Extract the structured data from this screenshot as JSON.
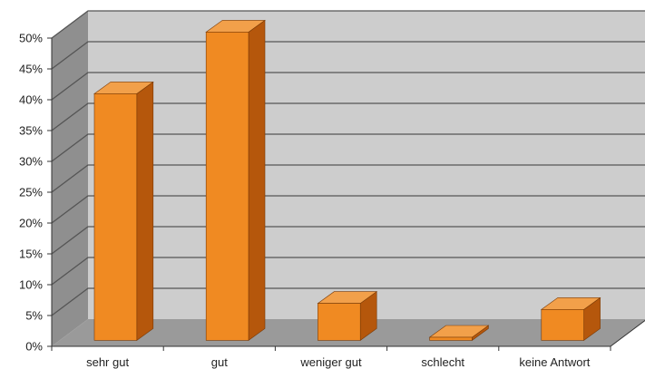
{
  "chart_data": {
    "type": "bar",
    "style": "3d",
    "title": "",
    "xlabel": "",
    "ylabel": "",
    "categories": [
      "sehr gut",
      "gut",
      "weniger gut",
      "schlecht",
      "keine Antwort"
    ],
    "values": [
      40,
      50,
      6,
      0.5,
      5
    ],
    "ylim": [
      0,
      50
    ],
    "yticks": [
      0,
      5,
      10,
      15,
      20,
      25,
      30,
      35,
      40,
      45,
      50
    ],
    "ytick_labels": [
      "0%",
      "5%",
      "10%",
      "15%",
      "20%",
      "25%",
      "30%",
      "35%",
      "40%",
      "45%",
      "50%"
    ],
    "grid": true,
    "legend": "none",
    "colors": {
      "bar_front": "#f08a22",
      "bar_side": "#b5570c",
      "bar_top": "#f2a04a",
      "wall_back": "#cdcdcd",
      "wall_side": "#8f8f8f",
      "floor": "#9a9a9a",
      "gridline": "#555555"
    }
  }
}
